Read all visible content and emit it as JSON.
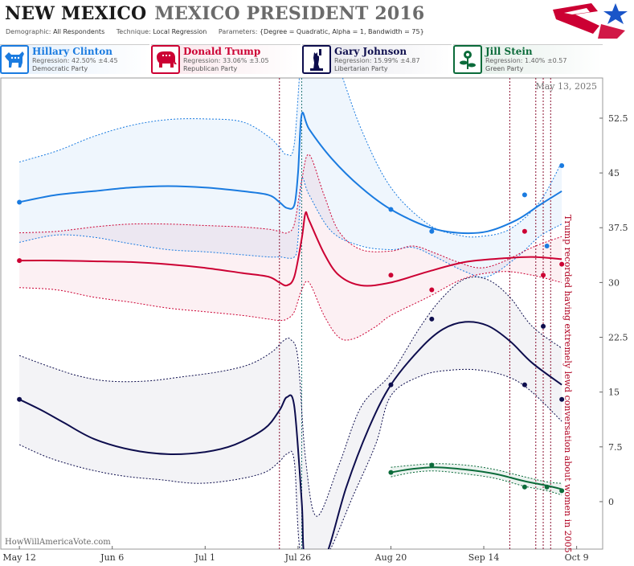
{
  "header": {
    "state": "NEW MEXICO",
    "race": "MEXICO PRESIDENT 2016",
    "demographic_label": "Demographic:",
    "demographic": "All Respondents",
    "technique_label": "Technique:",
    "technique": "Local Regression",
    "parameters_label": "Parameters:",
    "parameters": "{Degree = Quadratic, Alpha = 1, Bandwidth = 75}"
  },
  "candidates": [
    {
      "name": "Hillary Clinton",
      "regression": "Regression: 42.50% ±4.45",
      "party": "Democratic Party",
      "color": "#1a7be0",
      "icon": "donkey-icon"
    },
    {
      "name": "Donald Trump",
      "regression": "Regression: 33.06% ±3.05",
      "party": "Republican Party",
      "color": "#cc0033",
      "icon": "elephant-icon"
    },
    {
      "name": "Gary Johnson",
      "regression": "Regression: 15.99% ±4.87",
      "party": "Libertarian Party",
      "color": "#0d0d4d",
      "icon": "liberty-statue-icon"
    },
    {
      "name": "Jill Stein",
      "regression": "Regression: 1.40% ±0.57",
      "party": "Green Party",
      "color": "#0b6b3a",
      "icon": "flower-icon"
    }
  ],
  "chart_data": {
    "type": "line",
    "date_label": "May 13, 2025",
    "annotation": "Trump recorded having extremely lewd conversation about women in 2005",
    "watermark": "HowWillAmericaVote.com",
    "x_ticks": [
      "May 12",
      "Jun 6",
      "Jul 1",
      "Jul 26",
      "Aug 20",
      "Sep 14",
      "Oct 9"
    ],
    "x_tick_days": [
      0,
      25,
      50,
      75,
      100,
      125,
      150
    ],
    "y_ticks": [
      "0",
      "7.5",
      "15",
      "22.5",
      "30",
      "37.5",
      "45",
      "52.5"
    ],
    "ylim": [
      -6.5,
      58
    ],
    "xlim": [
      -5,
      157
    ],
    "grid": false,
    "event_lines_days": [
      70,
      76,
      132,
      139,
      141,
      143
    ],
    "annotation_day": 146,
    "series": [
      {
        "name": "Hillary Clinton",
        "color": "#1a7be0",
        "band_color": "rgba(26,123,224,0.07)",
        "line": [
          [
            0,
            41
          ],
          [
            10,
            42
          ],
          [
            20,
            42.5
          ],
          [
            30,
            43
          ],
          [
            40,
            43.2
          ],
          [
            50,
            43
          ],
          [
            60,
            42.5
          ],
          [
            67,
            42
          ],
          [
            70,
            41
          ],
          [
            72,
            40.2
          ],
          [
            74,
            40.6
          ],
          [
            75,
            45
          ],
          [
            76,
            53
          ],
          [
            78,
            51
          ],
          [
            84,
            47
          ],
          [
            92,
            43
          ],
          [
            100,
            40
          ],
          [
            110,
            37.6
          ],
          [
            118,
            36.8
          ],
          [
            126,
            37
          ],
          [
            134,
            38.6
          ],
          [
            140,
            40.6
          ],
          [
            146,
            42.5
          ]
        ],
        "upper": [
          [
            0,
            46.5
          ],
          [
            10,
            48
          ],
          [
            20,
            50
          ],
          [
            30,
            51.5
          ],
          [
            40,
            52.3
          ],
          [
            50,
            52.4
          ],
          [
            60,
            52
          ],
          [
            67,
            50
          ],
          [
            70,
            48.5
          ],
          [
            72,
            47.5
          ],
          [
            74,
            49
          ],
          [
            76,
            62
          ],
          [
            78,
            66
          ],
          [
            84,
            62
          ],
          [
            92,
            51
          ],
          [
            100,
            43
          ],
          [
            110,
            38
          ],
          [
            118,
            36.5
          ],
          [
            124,
            36.3
          ],
          [
            132,
            37.3
          ],
          [
            140,
            41
          ],
          [
            146,
            46.5
          ]
        ],
        "lower": [
          [
            0,
            35.5
          ],
          [
            10,
            36.5
          ],
          [
            20,
            36.2
          ],
          [
            30,
            35.3
          ],
          [
            40,
            34.5
          ],
          [
            50,
            34.2
          ],
          [
            60,
            33.8
          ],
          [
            67,
            33.5
          ],
          [
            70,
            33.5
          ],
          [
            74,
            33.5
          ],
          [
            75,
            36
          ],
          [
            76,
            44
          ],
          [
            78,
            42
          ],
          [
            84,
            37
          ],
          [
            92,
            35
          ],
          [
            100,
            34.5
          ],
          [
            106,
            34.8
          ],
          [
            112,
            33.5
          ],
          [
            120,
            31.5
          ],
          [
            126,
            30.8
          ],
          [
            134,
            33.5
          ],
          [
            140,
            36.3
          ],
          [
            146,
            38
          ]
        ],
        "points": [
          [
            0,
            41
          ],
          [
            100,
            40
          ],
          [
            111,
            37
          ],
          [
            136,
            42
          ],
          [
            142,
            35
          ],
          [
            146,
            46
          ]
        ]
      },
      {
        "name": "Donald Trump",
        "color": "#cc0033",
        "band_color": "rgba(204,0,51,0.06)",
        "line": [
          [
            0,
            33
          ],
          [
            10,
            33
          ],
          [
            20,
            32.9
          ],
          [
            30,
            32.8
          ],
          [
            40,
            32.5
          ],
          [
            50,
            32
          ],
          [
            60,
            31.3
          ],
          [
            67,
            30.8
          ],
          [
            70,
            30
          ],
          [
            72,
            29.6
          ],
          [
            74,
            30.8
          ],
          [
            76,
            36
          ],
          [
            77,
            39.5
          ],
          [
            78,
            38.5
          ],
          [
            82,
            34
          ],
          [
            86,
            31
          ],
          [
            92,
            29.6
          ],
          [
            100,
            30
          ],
          [
            110,
            31.5
          ],
          [
            120,
            32.8
          ],
          [
            130,
            33.3
          ],
          [
            138,
            33.5
          ],
          [
            146,
            33.2
          ]
        ],
        "upper": [
          [
            0,
            36.8
          ],
          [
            10,
            37
          ],
          [
            20,
            37.6
          ],
          [
            30,
            38
          ],
          [
            40,
            38
          ],
          [
            50,
            37.8
          ],
          [
            60,
            37.6
          ],
          [
            67,
            37.3
          ],
          [
            70,
            37
          ],
          [
            72,
            36.8
          ],
          [
            74,
            38
          ],
          [
            76,
            44
          ],
          [
            78,
            47.5
          ],
          [
            82,
            42
          ],
          [
            86,
            37
          ],
          [
            92,
            34.5
          ],
          [
            100,
            34.3
          ],
          [
            106,
            35
          ],
          [
            112,
            34
          ],
          [
            118,
            32.8
          ],
          [
            124,
            32
          ],
          [
            130,
            32.8
          ],
          [
            138,
            34.8
          ],
          [
            146,
            36.3
          ]
        ],
        "lower": [
          [
            0,
            29.3
          ],
          [
            10,
            29
          ],
          [
            20,
            28
          ],
          [
            30,
            27.3
          ],
          [
            40,
            26.5
          ],
          [
            50,
            26
          ],
          [
            60,
            25.5
          ],
          [
            67,
            25
          ],
          [
            70,
            24.8
          ],
          [
            72,
            25
          ],
          [
            74,
            26
          ],
          [
            76,
            29
          ],
          [
            78,
            30
          ],
          [
            82,
            25.5
          ],
          [
            86,
            22.5
          ],
          [
            90,
            22.3
          ],
          [
            96,
            24
          ],
          [
            100,
            25.5
          ],
          [
            110,
            28
          ],
          [
            120,
            30.6
          ],
          [
            130,
            31.5
          ],
          [
            138,
            31
          ],
          [
            146,
            30
          ]
        ],
        "points": [
          [
            0,
            33
          ],
          [
            100,
            31
          ],
          [
            111,
            29
          ],
          [
            136,
            37
          ],
          [
            141,
            31
          ],
          [
            146,
            32.5
          ]
        ]
      },
      {
        "name": "Gary Johnson",
        "color": "#0d0d4d",
        "band_color": "rgba(13,13,77,0.05)",
        "line": [
          [
            0,
            14
          ],
          [
            6,
            12.5
          ],
          [
            12,
            10.8
          ],
          [
            20,
            8.6
          ],
          [
            30,
            7.1
          ],
          [
            40,
            6.5
          ],
          [
            50,
            6.8
          ],
          [
            58,
            7.8
          ],
          [
            66,
            10
          ],
          [
            70,
            12.5
          ],
          [
            72,
            14.3
          ],
          [
            74,
            13
          ],
          [
            76,
            0
          ],
          [
            77,
            -8
          ],
          [
            82,
            -8
          ],
          [
            88,
            2
          ],
          [
            94,
            10
          ],
          [
            100,
            16
          ],
          [
            108,
            21
          ],
          [
            114,
            23.6
          ],
          [
            120,
            24.6
          ],
          [
            126,
            24.1
          ],
          [
            132,
            22
          ],
          [
            138,
            19
          ],
          [
            146,
            16
          ]
        ],
        "upper": [
          [
            0,
            20
          ],
          [
            8,
            18.5
          ],
          [
            16,
            17.2
          ],
          [
            24,
            16.5
          ],
          [
            34,
            16.5
          ],
          [
            44,
            17.1
          ],
          [
            54,
            17.8
          ],
          [
            62,
            18.8
          ],
          [
            68,
            20.5
          ],
          [
            71,
            22
          ],
          [
            73,
            22.2
          ],
          [
            75,
            19.5
          ],
          [
            77,
            6
          ],
          [
            80,
            -2
          ],
          [
            86,
            5
          ],
          [
            92,
            13
          ],
          [
            100,
            17.5
          ],
          [
            108,
            24
          ],
          [
            114,
            28
          ],
          [
            120,
            30.5
          ],
          [
            126,
            30.4
          ],
          [
            132,
            28
          ],
          [
            138,
            24
          ],
          [
            146,
            21
          ]
        ],
        "lower": [
          [
            0,
            7.8
          ],
          [
            8,
            6
          ],
          [
            18,
            4.5
          ],
          [
            28,
            3.5
          ],
          [
            38,
            3
          ],
          [
            48,
            2.5
          ],
          [
            58,
            3
          ],
          [
            66,
            4
          ],
          [
            70,
            5.5
          ],
          [
            72,
            6.5
          ],
          [
            74,
            5.5
          ],
          [
            76,
            -8
          ],
          [
            82,
            -8
          ],
          [
            90,
            1
          ],
          [
            96,
            8
          ],
          [
            100,
            14.5
          ],
          [
            108,
            17.2
          ],
          [
            116,
            18
          ],
          [
            124,
            18
          ],
          [
            132,
            17
          ],
          [
            138,
            15
          ],
          [
            146,
            11
          ]
        ],
        "points": [
          [
            0,
            14
          ],
          [
            100,
            16
          ],
          [
            111,
            25
          ],
          [
            136,
            16
          ],
          [
            141,
            24
          ],
          [
            146,
            14
          ]
        ]
      },
      {
        "name": "Jill Stein",
        "color": "#0b6b3a",
        "band_color": "rgba(11,107,58,0.08)",
        "line": [
          [
            100,
            4
          ],
          [
            106,
            4.5
          ],
          [
            112,
            4.7
          ],
          [
            120,
            4.4
          ],
          [
            128,
            3.8
          ],
          [
            136,
            2.8
          ],
          [
            142,
            2.2
          ],
          [
            146,
            1.7
          ]
        ],
        "upper": [
          [
            100,
            4.7
          ],
          [
            106,
            5
          ],
          [
            112,
            5.2
          ],
          [
            120,
            5
          ],
          [
            128,
            4.4
          ],
          [
            136,
            3.4
          ],
          [
            142,
            2.7
          ],
          [
            146,
            2.5
          ]
        ],
        "lower": [
          [
            100,
            3.4
          ],
          [
            106,
            4
          ],
          [
            112,
            4.2
          ],
          [
            120,
            3.8
          ],
          [
            128,
            3.2
          ],
          [
            136,
            2.1
          ],
          [
            142,
            1.5
          ],
          [
            146,
            0.9
          ]
        ],
        "points": [
          [
            100,
            4
          ],
          [
            111,
            5
          ],
          [
            136,
            2
          ],
          [
            142,
            2
          ],
          [
            146,
            1.5
          ]
        ]
      }
    ]
  }
}
